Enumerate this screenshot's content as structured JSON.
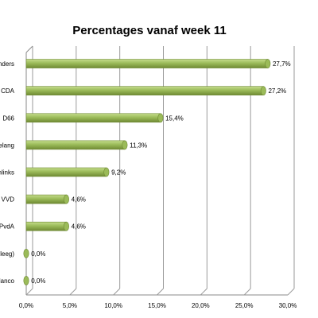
{
  "chart_data": {
    "type": "bar",
    "orientation": "horizontal",
    "title": "Percentages vanaf week 11",
    "categories": [
      "anders",
      "CDA",
      "D66",
      "elang",
      "nlinks",
      "VVD",
      "PvdA",
      "(leeg)",
      "lanco"
    ],
    "values": [
      27.7,
      27.2,
      15.4,
      11.3,
      9.2,
      4.6,
      4.6,
      0.0,
      0.0
    ],
    "data_labels": [
      "27,7%",
      "27,2%",
      "15,4%",
      "11,3%",
      "9,2%",
      "4,6%",
      "4,6%",
      "0,0%",
      "0,0%"
    ],
    "x_ticks": [
      "0,0%",
      "5,0%",
      "10,0%",
      "15,0%",
      "20,0%",
      "25,0%",
      "30,0%"
    ],
    "xlim": [
      0,
      30
    ],
    "xlabel": "",
    "ylabel": "",
    "grid": "vertical",
    "legend": "none",
    "bar_color": "#9bbb59",
    "bar_dark": "#6f8a34",
    "bar_light": "#c5dc8c"
  }
}
